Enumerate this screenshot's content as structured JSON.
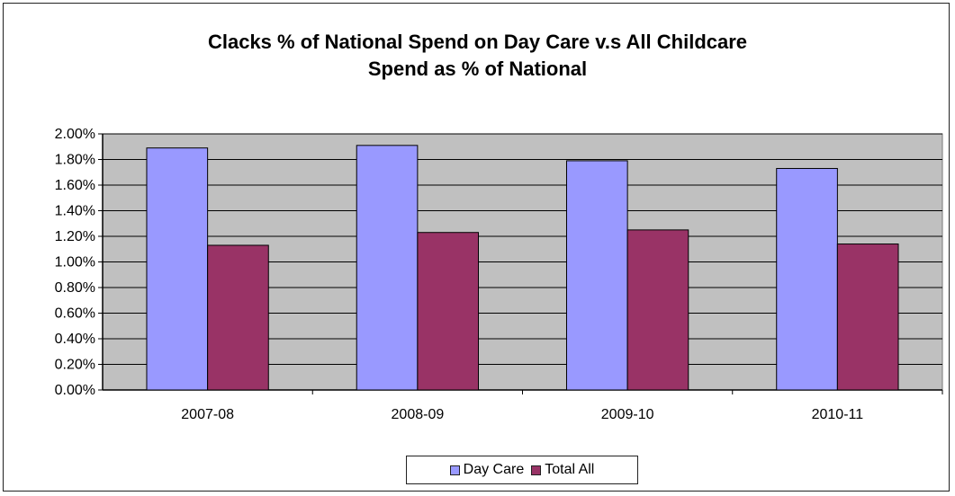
{
  "chart_data": {
    "type": "bar",
    "title": "Clacks % of National Spend on Day Care v.s All Childcare",
    "subtitle": "Spend as % of National",
    "categories": [
      "2007-08",
      "2008-09",
      "2009-10",
      "2010-11"
    ],
    "series": [
      {
        "name": "Day Care",
        "values": [
          1.89,
          1.91,
          1.79,
          1.73
        ],
        "color": "#9999ff"
      },
      {
        "name": "Total All",
        "values": [
          1.13,
          1.23,
          1.25,
          1.14
        ],
        "color": "#993366"
      }
    ],
    "xlabel": "",
    "ylabel": "",
    "ylim": [
      0,
      2.0
    ],
    "yticks": [
      "0.00%",
      "0.20%",
      "0.40%",
      "0.60%",
      "0.80%",
      "1.00%",
      "1.20%",
      "1.40%",
      "1.60%",
      "1.80%",
      "2.00%"
    ],
    "grid": true,
    "plot_background": "#c0c0c0",
    "legend_position": "bottom"
  }
}
